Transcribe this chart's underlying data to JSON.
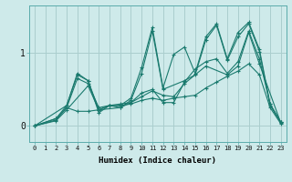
{
  "xlabel": "Humidex (Indice chaleur)",
  "ylabel": "",
  "bg_color": "#ceeaea",
  "line_color": "#1a7a6e",
  "grid_color": "#aacece",
  "xlim": [
    -0.5,
    23.5
  ],
  "ylim": [
    -0.22,
    1.65
  ],
  "xticks": [
    0,
    1,
    2,
    3,
    4,
    5,
    6,
    7,
    8,
    9,
    10,
    11,
    12,
    13,
    14,
    15,
    16,
    17,
    18,
    19,
    20,
    21,
    22,
    23
  ],
  "ytick_positions": [
    0,
    1
  ],
  "series": [
    {
      "x": [
        0,
        3,
        4,
        5,
        6,
        7,
        8,
        9,
        10,
        11,
        12,
        13,
        14,
        15,
        16,
        17,
        18,
        19,
        20,
        21,
        22,
        23
      ],
      "y": [
        0,
        0.28,
        0.72,
        0.62,
        0.18,
        0.28,
        0.28,
        0.38,
        0.8,
        1.35,
        0.52,
        0.98,
        1.08,
        0.72,
        1.22,
        1.4,
        0.92,
        1.28,
        1.42,
        1.05,
        0.3,
        0.05
      ]
    },
    {
      "x": [
        0,
        2,
        3,
        4,
        5,
        6,
        7,
        8,
        9,
        10,
        11,
        12,
        13,
        14,
        15,
        16,
        17,
        18,
        19,
        20,
        21,
        22,
        23
      ],
      "y": [
        0,
        0.08,
        0.25,
        0.65,
        0.58,
        0.25,
        0.28,
        0.3,
        0.32,
        0.45,
        0.5,
        0.32,
        0.32,
        0.6,
        0.78,
        0.88,
        0.92,
        0.72,
        0.88,
        1.3,
        0.92,
        0.3,
        0.05
      ]
    },
    {
      "x": [
        0,
        2,
        3,
        4,
        5,
        6,
        8,
        9,
        10,
        11,
        12,
        14,
        15,
        16,
        17,
        18,
        19,
        20,
        21,
        22,
        23
      ],
      "y": [
        0,
        0.1,
        0.28,
        0.7,
        0.62,
        0.22,
        0.25,
        0.35,
        0.72,
        1.3,
        0.5,
        0.62,
        0.7,
        1.18,
        1.38,
        0.9,
        1.22,
        1.4,
        1.02,
        0.28,
        0.05
      ]
    },
    {
      "x": [
        0,
        2,
        3,
        4,
        5,
        6,
        7,
        8,
        9,
        10,
        11,
        12,
        13,
        14,
        15,
        16,
        17,
        18,
        19,
        20,
        21,
        22,
        23
      ],
      "y": [
        0,
        0.1,
        0.25,
        0.2,
        0.2,
        0.22,
        0.28,
        0.28,
        0.3,
        0.35,
        0.38,
        0.35,
        0.38,
        0.4,
        0.42,
        0.52,
        0.6,
        0.68,
        0.75,
        0.85,
        0.7,
        0.25,
        0.03
      ]
    },
    {
      "x": [
        0,
        2,
        3,
        5,
        6,
        7,
        8,
        9,
        10,
        11,
        12,
        13,
        14,
        16,
        18,
        19,
        20,
        21,
        23
      ],
      "y": [
        0,
        0.07,
        0.22,
        0.55,
        0.22,
        0.28,
        0.25,
        0.32,
        0.4,
        0.48,
        0.42,
        0.4,
        0.58,
        0.82,
        0.7,
        0.82,
        1.28,
        0.85,
        0.04
      ]
    }
  ]
}
